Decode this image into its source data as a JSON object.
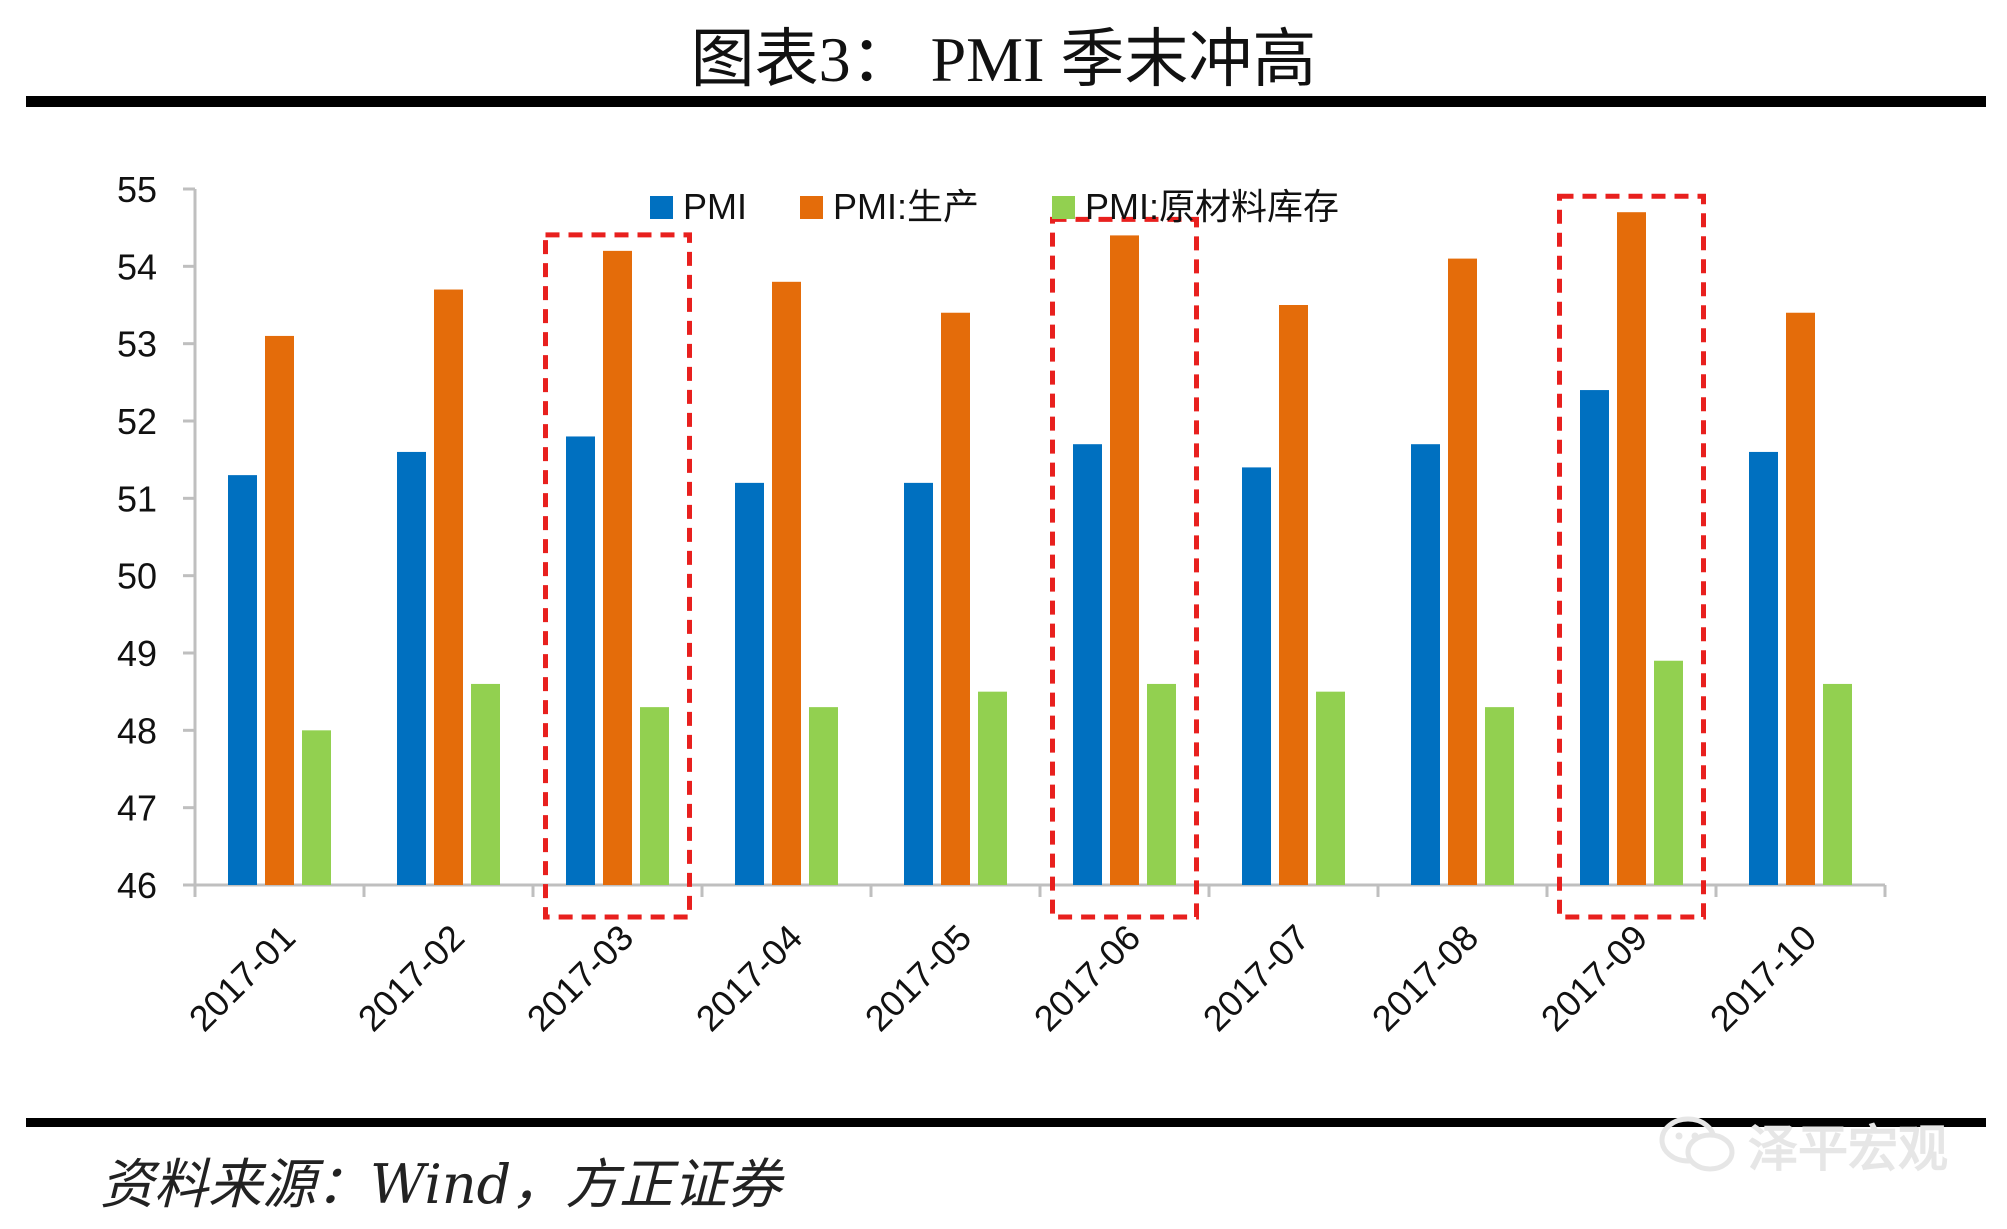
{
  "figure": {
    "title": "图表3：  PMI 季末冲高",
    "source": "资料来源：Wind，方正证券",
    "watermark": "泽平宏观"
  },
  "colors": {
    "pmi": "#0070c0",
    "production": "#e46c0a",
    "inventory": "#92d050",
    "highlight": "#e8201e",
    "axis": "#bfbfbf"
  },
  "chart_data": {
    "type": "bar",
    "categories": [
      "2017-01",
      "2017-02",
      "2017-03",
      "2017-04",
      "2017-05",
      "2017-06",
      "2017-07",
      "2017-08",
      "2017-09",
      "2017-10"
    ],
    "series": [
      {
        "name": "PMI",
        "values": [
          51.3,
          51.6,
          51.8,
          51.2,
          51.2,
          51.7,
          51.4,
          51.7,
          52.4,
          51.6
        ]
      },
      {
        "name": "PMI:生产",
        "values": [
          53.1,
          53.7,
          54.2,
          53.8,
          53.4,
          54.4,
          53.5,
          54.1,
          54.7,
          53.4
        ]
      },
      {
        "name": "PMI:原材料库存",
        "values": [
          48.0,
          48.6,
          48.3,
          48.3,
          48.5,
          48.6,
          48.5,
          48.3,
          48.9,
          48.6
        ]
      }
    ],
    "ylim": [
      46,
      55
    ],
    "yticks": [
      46,
      47,
      48,
      49,
      50,
      51,
      52,
      53,
      54,
      55
    ],
    "legend_position": "top",
    "highlighted_categories": [
      "2017-03",
      "2017-06",
      "2017-09"
    ],
    "title": "",
    "xlabel": "",
    "ylabel": ""
  }
}
